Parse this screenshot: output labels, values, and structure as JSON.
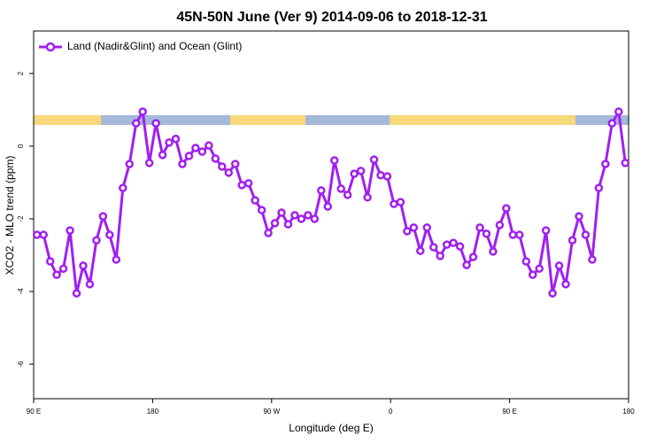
{
  "chart_data": {
    "type": "line",
    "title": "45N-50N June (Ver 9)   2014-09-06 to 2018-12-31",
    "x_label": "Longitude (deg E)",
    "y_label": "XCO2 - MLO trend (ppm)",
    "x": [
      92.5,
      97.5,
      102.5,
      107.5,
      112.5,
      117.5,
      122.5,
      127.5,
      132.5,
      137.5,
      142.5,
      147.5,
      152.5,
      157.5,
      162.5,
      167.5,
      172.5,
      177.5,
      182.5,
      187.5,
      192.5,
      197.5,
      202.5,
      207.5,
      212.5,
      217.5,
      222.5,
      227.5,
      232.5,
      237.5,
      242.5,
      247.5,
      252.5,
      257.5,
      262.5,
      267.5,
      272.5,
      277.5,
      282.5,
      287.5,
      292.5,
      297.5,
      302.5,
      307.5,
      312.5,
      317.5,
      322.5,
      327.5,
      332.5,
      337.5,
      342.5,
      347.5,
      352.5,
      357.5,
      362.5,
      367.5,
      372.5,
      377.5,
      382.5,
      387.5,
      392.5,
      397.5,
      402.5,
      407.5,
      412.5,
      417.5,
      422.5,
      427.5,
      432.5,
      437.5,
      442.5,
      447.5,
      452.5,
      457.5,
      462.5,
      467.5,
      472.5,
      477.5,
      482.5,
      487.5,
      492.5,
      497.5,
      502.5,
      507.5,
      512.5,
      517.5,
      522.5,
      527.5,
      532.5,
      537.5
    ],
    "series": [
      {
        "name": "Land (Nadir&Glint) and Ocean (Glint)",
        "color": "#a020f0",
        "values": [
          -2.44,
          -2.44,
          -3.17,
          -3.54,
          -3.37,
          -2.32,
          -4.05,
          -3.29,
          -3.8,
          -2.59,
          -1.93,
          -2.44,
          -3.12,
          -1.15,
          -0.49,
          0.63,
          0.95,
          -0.46,
          0.63,
          -0.24,
          0.1,
          0.2,
          -0.49,
          -0.27,
          -0.05,
          -0.15,
          0.02,
          -0.34,
          -0.56,
          -0.73,
          -0.49,
          -1.07,
          -1.02,
          -1.49,
          -1.76,
          -2.39,
          -2.12,
          -1.83,
          -2.15,
          -1.9,
          -2.0,
          -1.9,
          -2.0,
          -1.22,
          -1.66,
          -0.39,
          -1.17,
          -1.34,
          -0.76,
          -0.68,
          -1.41,
          -0.37,
          -0.8,
          -0.83,
          -1.59,
          -1.54,
          -2.34,
          -2.24,
          -2.88,
          -2.24,
          -2.78,
          -3.02,
          -2.71,
          -2.66,
          -2.76,
          -3.27,
          -3.05,
          -2.24,
          -2.41,
          -2.9,
          -2.17,
          -1.71,
          -2.44,
          -2.44,
          -3.17,
          -3.54,
          -3.37,
          -2.32,
          -4.05,
          -3.29,
          -3.8,
          -2.59,
          -1.93,
          -2.44,
          -3.12,
          -1.15,
          -0.49,
          0.63,
          0.95,
          -0.46
        ]
      }
    ],
    "xlim": [
      90,
      540
    ],
    "xticks": [
      {
        "value": 90,
        "label": "90 E"
      },
      180,
      {
        "value": 270,
        "label": "90 W"
      },
      {
        "value": 360,
        "label": "0"
      },
      {
        "value": 450,
        "label": "90 E"
      },
      {
        "value": 540,
        "label": "180"
      }
    ],
    "ylim": [
      -6.95,
      3.17
    ],
    "yticks": [
      -6,
      -4,
      -2,
      0,
      2
    ],
    "legend": "top-left"
  }
}
